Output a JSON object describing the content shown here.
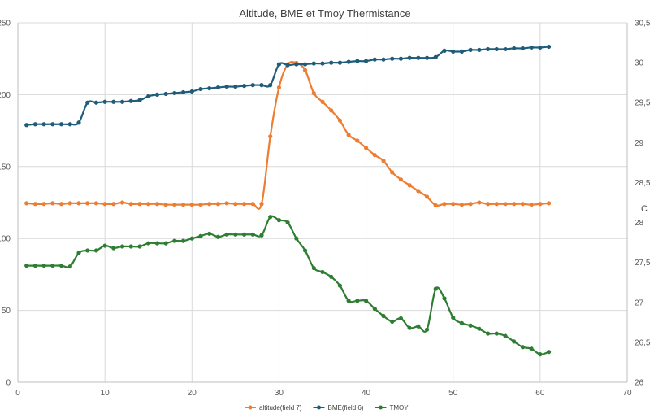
{
  "chart_data": {
    "type": "line",
    "title": "Altitude, BME et Tmoy Thermistance",
    "y2_title": "C",
    "xlim": [
      0,
      70
    ],
    "x_ticks": [
      0,
      10,
      20,
      30,
      40,
      50,
      60,
      70
    ],
    "ylim": [
      0,
      250
    ],
    "y_ticks": [
      0,
      50,
      100,
      150,
      200,
      250
    ],
    "y2lim": [
      26,
      30.5
    ],
    "y2_ticks": [
      "26",
      "26,5",
      "27",
      "27,5",
      "28",
      "28,5",
      "29",
      "29,5",
      "30",
      "30,5"
    ],
    "grid": true,
    "legend_position": "bottom",
    "x": [
      1,
      2,
      3,
      4,
      5,
      6,
      7,
      8,
      9,
      10,
      11,
      12,
      13,
      14,
      15,
      16,
      17,
      18,
      19,
      20,
      21,
      22,
      23,
      24,
      25,
      26,
      27,
      28,
      29,
      30,
      31,
      32,
      33,
      34,
      35,
      36,
      37,
      38,
      39,
      40,
      41,
      42,
      43,
      44,
      45,
      46,
      47,
      48,
      49,
      50,
      51,
      52,
      53,
      54,
      55,
      56,
      57,
      58,
      59,
      60,
      61
    ],
    "series": [
      {
        "name": "altitude(field 7)",
        "axis": "left",
        "color": "#ED7D31",
        "values": [
          124.5,
          124,
          124,
          124.5,
          124,
          124.5,
          124.5,
          124.5,
          124.5,
          124,
          124,
          125,
          124,
          124,
          124,
          124,
          123.5,
          123.5,
          123.5,
          123.5,
          123.5,
          124,
          124,
          124.5,
          124,
          124,
          124,
          124,
          171,
          205,
          221,
          222,
          217,
          201,
          195,
          189,
          182,
          172,
          168,
          163,
          158,
          154,
          146,
          141,
          137,
          133,
          129,
          123,
          124,
          124,
          123.5,
          124,
          125,
          124,
          124,
          124,
          124,
          124,
          123.5,
          124,
          124.5
        ]
      },
      {
        "name": "BME(field 6)",
        "axis": "right",
        "color": "#1F5C7A",
        "values": [
          29.22,
          29.23,
          29.23,
          29.23,
          29.23,
          29.23,
          29.25,
          29.5,
          29.5,
          29.51,
          29.51,
          29.51,
          29.52,
          29.53,
          29.58,
          29.6,
          29.61,
          29.62,
          29.63,
          29.64,
          29.67,
          29.68,
          29.69,
          29.7,
          29.7,
          29.71,
          29.72,
          29.72,
          29.72,
          29.98,
          29.97,
          29.98,
          29.98,
          29.99,
          29.99,
          30.0,
          30.0,
          30.01,
          30.02,
          30.02,
          30.04,
          30.04,
          30.05,
          30.05,
          30.06,
          30.06,
          30.06,
          30.07,
          30.15,
          30.14,
          30.14,
          30.16,
          30.16,
          30.17,
          30.17,
          30.17,
          30.18,
          30.18,
          30.19,
          30.19,
          30.2
        ]
      },
      {
        "name": "TMOY",
        "axis": "right",
        "color": "#2E7D32",
        "values": [
          27.46,
          27.46,
          27.46,
          27.46,
          27.46,
          27.45,
          27.62,
          27.65,
          27.65,
          27.71,
          27.68,
          27.7,
          27.7,
          27.7,
          27.74,
          27.74,
          27.74,
          27.77,
          27.77,
          27.8,
          27.83,
          27.86,
          27.82,
          27.85,
          27.85,
          27.85,
          27.85,
          27.84,
          28.07,
          28.03,
          28.0,
          27.8,
          27.65,
          27.43,
          27.38,
          27.32,
          27.21,
          27.02,
          27.02,
          27.02,
          26.92,
          26.83,
          26.76,
          26.8,
          26.68,
          26.7,
          26.66,
          27.17,
          27.05,
          26.81,
          26.74,
          26.71,
          26.67,
          26.61,
          26.61,
          26.58,
          26.51,
          26.44,
          26.42,
          26.35,
          26.38
        ]
      }
    ]
  }
}
